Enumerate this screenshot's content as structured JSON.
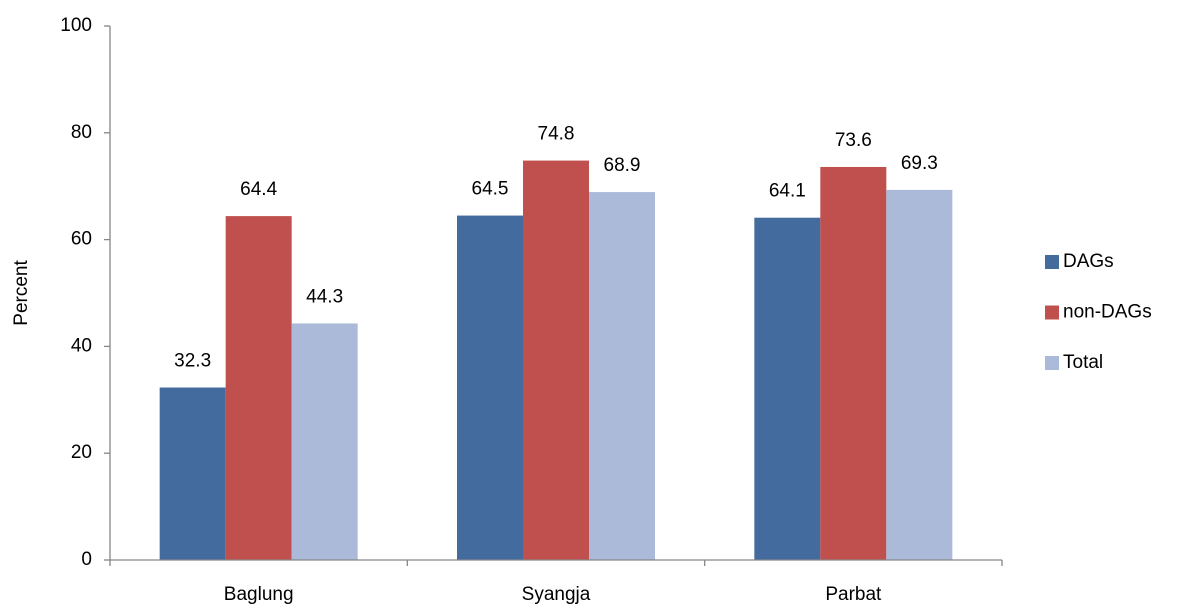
{
  "chart_data": {
    "type": "bar",
    "y_label": "Percent",
    "categories": [
      "Baglung",
      "Syangja",
      "Parbat"
    ],
    "series": [
      {
        "name": "DAGs",
        "color": "#436b9e",
        "values": [
          32.3,
          64.5,
          64.1
        ]
      },
      {
        "name": "non-DAGs",
        "color": "#c0504d",
        "values": [
          64.4,
          74.8,
          73.6
        ]
      },
      {
        "name": "Total",
        "color": "#abbad9",
        "values": [
          44.3,
          68.9,
          69.3
        ]
      }
    ],
    "ylim": [
      0,
      100
    ],
    "yticks": [
      0,
      20,
      40,
      60,
      80,
      100
    ],
    "grid": false,
    "legend": "right"
  }
}
